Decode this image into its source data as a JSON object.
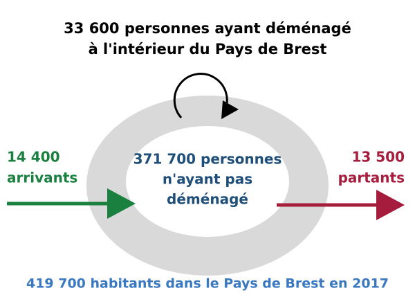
{
  "title": {
    "lines": [
      "33 600 personnes ayant déménagé",
      "à l'intérieur du Pays de Brest"
    ]
  },
  "inflow": {
    "lines": [
      "14 400",
      "arrivants"
    ]
  },
  "outflow": {
    "lines": [
      "13 500",
      "partants"
    ]
  },
  "center": {
    "lines": [
      "371 700 personnes",
      "n'ayant pas",
      "déménagé"
    ]
  },
  "footer": {
    "text": "419 700 habitants dans le Pays de Brest en 2017"
  }
}
